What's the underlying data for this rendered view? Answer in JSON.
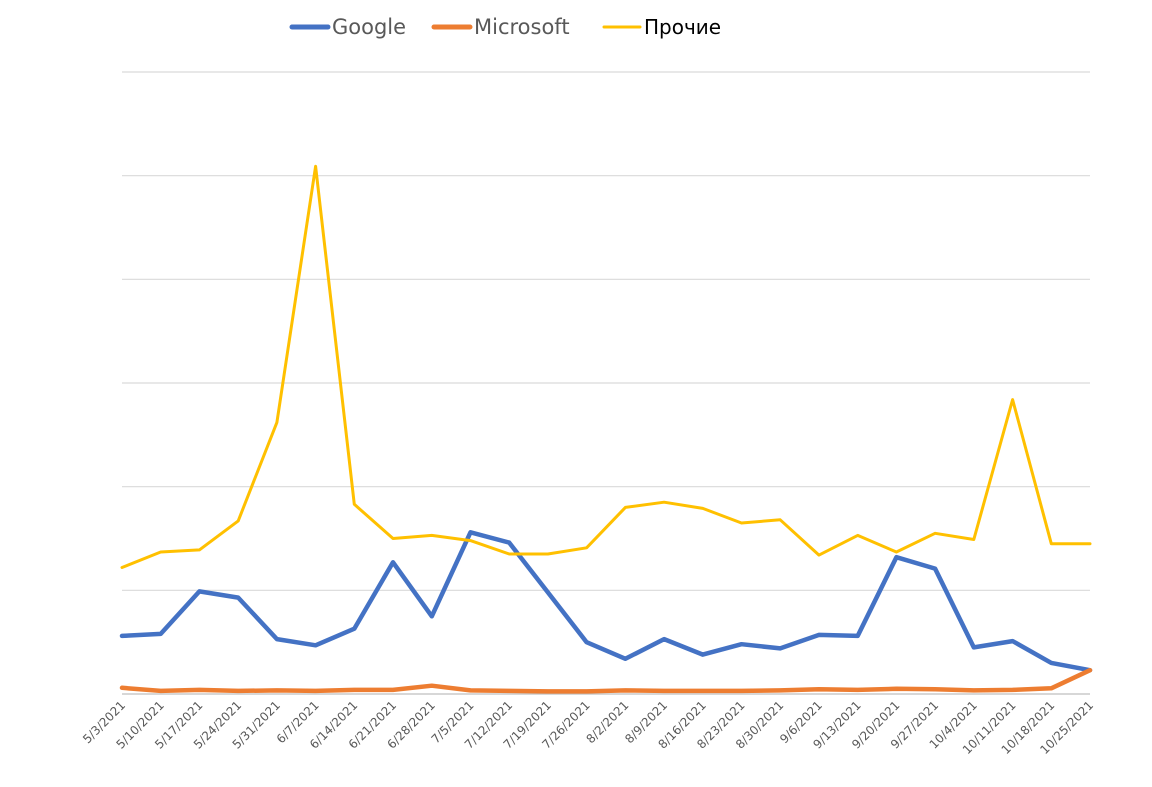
{
  "chart_data": {
    "type": "line",
    "title": "",
    "xlabel": "",
    "ylabel": "",
    "grid": true,
    "legend_position": "top",
    "y_tick_labels_shown": false,
    "x": [
      "5/3/2021",
      "5/10/2021",
      "5/17/2021",
      "5/24/2021",
      "5/31/2021",
      "6/7/2021",
      "6/14/2021",
      "6/21/2021",
      "6/28/2021",
      "7/5/2021",
      "7/12/2021",
      "7/19/2021",
      "7/26/2021",
      "8/2/2021",
      "8/9/2021",
      "8/16/2021",
      "8/23/2021",
      "8/30/2021",
      "9/6/2021",
      "9/13/2021",
      "9/20/2021",
      "9/27/2021",
      "10/4/2021",
      "10/11/2021",
      "10/18/2021",
      "10/25/2021"
    ],
    "ylim": [
      0,
      6
    ],
    "grid_count": 6,
    "series": [
      {
        "name": "Google",
        "color": "#4472C4",
        "values": [
          0.56,
          0.58,
          0.99,
          0.93,
          0.53,
          0.47,
          0.63,
          1.27,
          0.75,
          1.56,
          1.46,
          0.98,
          0.5,
          0.34,
          0.53,
          0.38,
          0.48,
          0.44,
          0.57,
          0.56,
          1.32,
          1.21,
          0.45,
          0.51,
          0.3,
          0.23
        ]
      },
      {
        "name": "Microsoft",
        "color": "#ED7D31",
        "values": [
          0.06,
          0.03,
          0.04,
          0.03,
          0.035,
          0.03,
          0.04,
          0.04,
          0.08,
          0.035,
          0.03,
          0.025,
          0.025,
          0.035,
          0.03,
          0.03,
          0.03,
          0.035,
          0.045,
          0.04,
          0.05,
          0.045,
          0.035,
          0.04,
          0.055,
          0.23
        ]
      },
      {
        "name": "Прочие",
        "color": "#FFC000",
        "values": [
          1.22,
          1.37,
          1.39,
          1.67,
          2.62,
          5.09,
          1.83,
          1.5,
          1.53,
          1.48,
          1.35,
          1.35,
          1.41,
          1.8,
          1.85,
          1.79,
          1.65,
          1.68,
          1.34,
          1.53,
          1.37,
          1.55,
          1.49,
          2.84,
          1.45,
          1.45
        ]
      }
    ]
  }
}
